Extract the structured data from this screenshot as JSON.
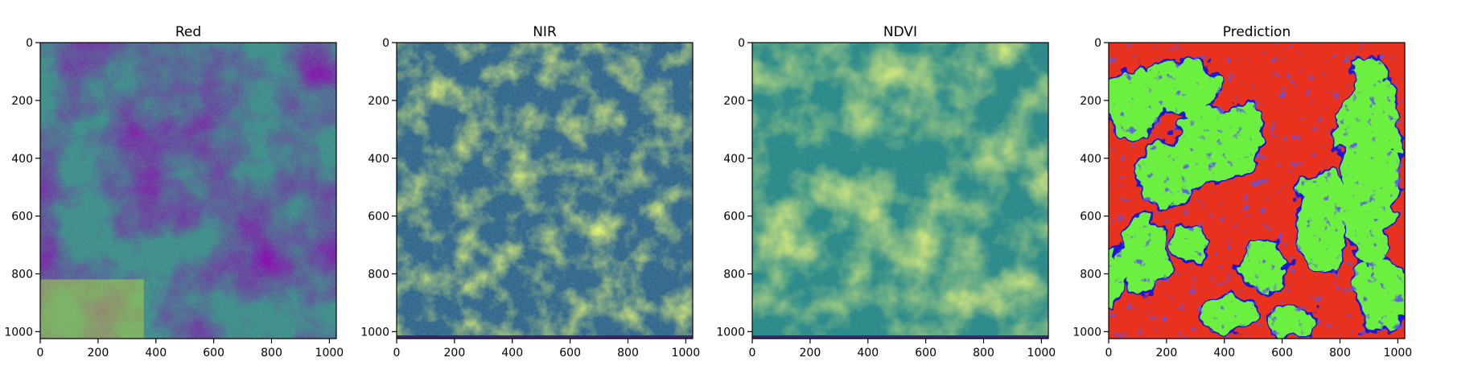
{
  "chart_data": [
    {
      "type": "heatmap",
      "title": "Red",
      "colormap": "viridis",
      "xlim": [
        0,
        1024
      ],
      "ylim": [
        1024,
        0
      ],
      "x_ticks": [
        0,
        200,
        400,
        600,
        800,
        1000
      ],
      "y_ticks": [
        0,
        200,
        400,
        600,
        800,
        1000
      ],
      "grid": false
    },
    {
      "type": "heatmap",
      "title": "NIR",
      "colormap": "viridis",
      "xlim": [
        0,
        1024
      ],
      "ylim": [
        1024,
        0
      ],
      "x_ticks": [
        0,
        200,
        400,
        600,
        800,
        1000
      ],
      "y_ticks": [
        0,
        200,
        400,
        600,
        800,
        1000
      ],
      "grid": false
    },
    {
      "type": "heatmap",
      "title": "NDVI",
      "colormap": "viridis",
      "xlim": [
        0,
        1024
      ],
      "ylim": [
        1024,
        0
      ],
      "x_ticks": [
        0,
        200,
        400,
        600,
        800,
        1000
      ],
      "y_ticks": [
        0,
        200,
        400,
        600,
        800,
        1000
      ],
      "grid": false
    },
    {
      "type": "heatmap",
      "title": "Prediction",
      "colormap": "categorical",
      "class_colors": [
        "#e8321e",
        "#6cf040",
        "#1c18d8"
      ],
      "xlim": [
        0,
        1024
      ],
      "ylim": [
        1024,
        0
      ],
      "x_ticks": [
        0,
        200,
        400,
        600,
        800,
        1000
      ],
      "y_ticks": [
        0,
        200,
        400,
        600,
        800,
        1000
      ],
      "grid": false
    }
  ]
}
